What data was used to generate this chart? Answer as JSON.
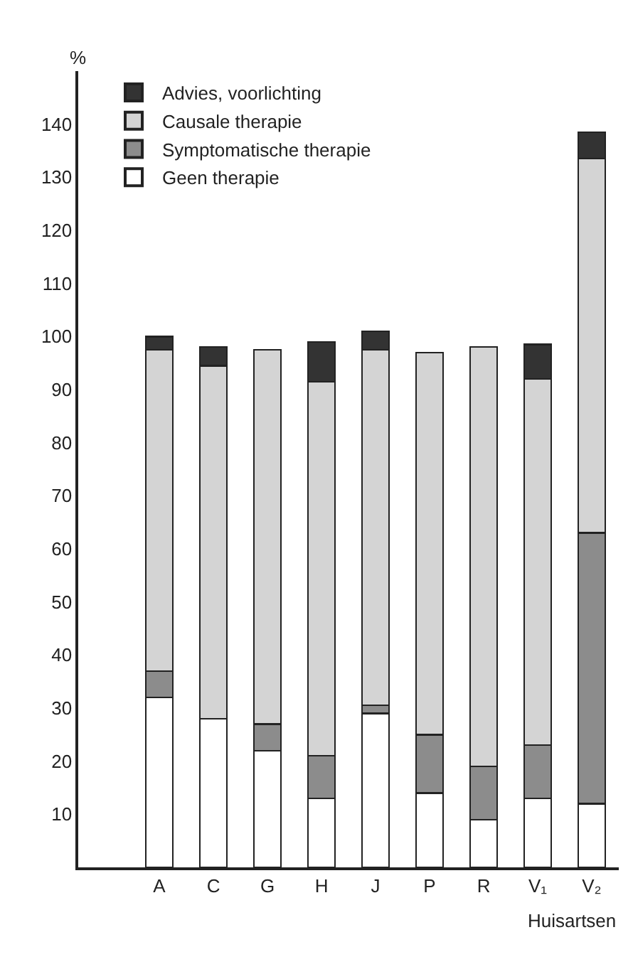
{
  "chart_data": {
    "type": "bar",
    "stacked": true,
    "ylabel": "%",
    "xlabel": "Huisartsen",
    "categories": [
      "A",
      "C",
      "G",
      "H",
      "J",
      "P",
      "R",
      "V₁",
      "V₂"
    ],
    "series": [
      {
        "name": "Geen therapie",
        "color": "#ffffff",
        "values": [
          32,
          28,
          22,
          13,
          29,
          14,
          9,
          13,
          12
        ]
      },
      {
        "name": "Symptomatische therapie",
        "color": "#8c8c8c",
        "values": [
          5,
          null,
          5,
          8,
          1.5,
          11,
          10,
          10,
          51
        ]
      },
      {
        "name": "Causale therapie",
        "color": "#d4d4d4",
        "values": [
          60.5,
          66.5,
          70.5,
          70.5,
          67,
          72,
          79,
          69,
          70.5
        ]
      },
      {
        "name": "Advies, voorlichting",
        "color": "#333333",
        "values": [
          2.5,
          3.5,
          null,
          7.5,
          3.5,
          null,
          null,
          6.5,
          5
        ]
      }
    ],
    "ylim": [
      0,
      150
    ],
    "yticks": [
      10,
      20,
      30,
      40,
      50,
      60,
      70,
      80,
      90,
      100,
      110,
      120,
      130,
      140
    ],
    "legend": "top left"
  }
}
